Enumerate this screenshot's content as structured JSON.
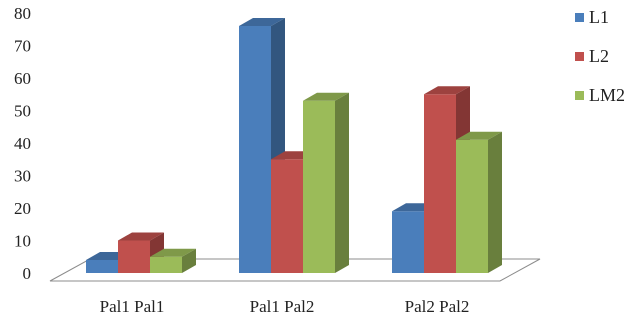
{
  "chart_data": {
    "type": "bar",
    "title": "",
    "xlabel": "",
    "ylabel": "",
    "ylim": [
      0,
      80
    ],
    "yticks": [
      0,
      10,
      20,
      30,
      40,
      50,
      60,
      70,
      80
    ],
    "grid": false,
    "legend_position": "right",
    "three_d": true,
    "categories": [
      "Pal1 Pal1",
      "Pal1 Pal2",
      "Pal2 Pal2"
    ],
    "series": [
      {
        "name": "L1",
        "values": [
          4,
          76,
          19
        ],
        "color": "#4a7ebb"
      },
      {
        "name": "L2",
        "values": [
          10,
          35,
          55
        ],
        "color": "#c0504d"
      },
      {
        "name": "LM2",
        "values": [
          5,
          53,
          41
        ],
        "color": "#9bbb59"
      }
    ]
  }
}
